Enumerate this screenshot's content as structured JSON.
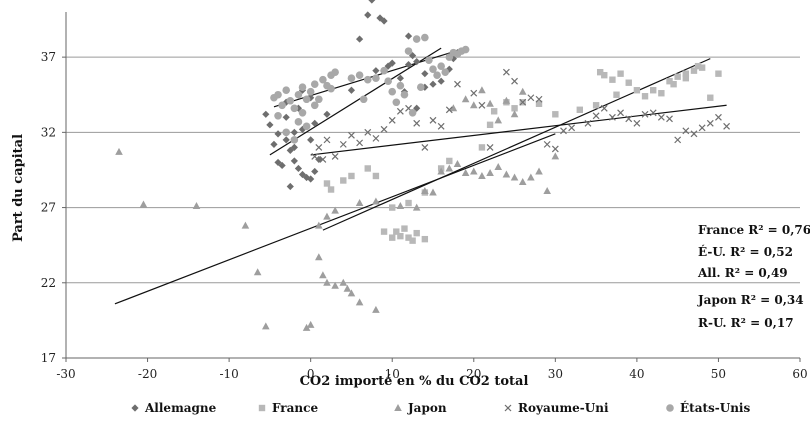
{
  "chart_data": {
    "type": "scatter",
    "xlabel": "CO2 importé en % du CO2 total",
    "ylabel": "Part du capital",
    "xlim": [
      -30,
      60
    ],
    "ylim": [
      17,
      40
    ],
    "x_ticks": [
      "-30",
      "-20",
      "-10",
      "0",
      "10",
      "20",
      "30",
      "40",
      "50",
      "60"
    ],
    "y_ticks": [
      "17",
      "22",
      "27",
      "32",
      "37"
    ],
    "grid": "horizontal",
    "legend_position": "bottom",
    "r2_labels": [
      "France R² = 0,76",
      "É-U. R² = 0,52",
      "All. R² = 0,49",
      "Japon R² = 0,34",
      "R-U. R² = 0,17"
    ],
    "series": [
      {
        "name": "Allemagne",
        "marker": "diamond",
        "color": "#6e6e6e",
        "points": [
          [
            -5.5,
            33.2
          ],
          [
            -5,
            32.5
          ],
          [
            -4,
            31.9
          ],
          [
            -3,
            31.5
          ],
          [
            -2.5,
            30.8
          ],
          [
            -2,
            30.1
          ],
          [
            -1.5,
            29.6
          ],
          [
            -1,
            29.2
          ],
          [
            -0.5,
            29.0
          ],
          [
            0,
            28.9
          ],
          [
            0.5,
            29.4
          ],
          [
            1,
            30.2
          ],
          [
            -4,
            30.0
          ],
          [
            -3.5,
            29.8
          ],
          [
            -2,
            31.0
          ],
          [
            -1,
            32.2
          ],
          [
            0,
            31.5
          ],
          [
            -3,
            33.0
          ],
          [
            -2,
            32.0
          ],
          [
            -4.5,
            31.2
          ],
          [
            -2.5,
            28.4
          ],
          [
            -1.5,
            33.6
          ],
          [
            0.5,
            32.6
          ],
          [
            2,
            33.2
          ],
          [
            -3,
            34.0
          ],
          [
            -1,
            34.8
          ],
          [
            0,
            34.3
          ],
          [
            5,
            34.8
          ],
          [
            6,
            38.2
          ],
          [
            7,
            39.8
          ],
          [
            7.5,
            40.8
          ],
          [
            8.5,
            39.6
          ],
          [
            9,
            39.4
          ],
          [
            9.5,
            36.4
          ],
          [
            10,
            36.6
          ],
          [
            11,
            35.6
          ],
          [
            12,
            36.5
          ],
          [
            12.5,
            37.1
          ],
          [
            13,
            36.7
          ],
          [
            14,
            35.9
          ],
          [
            15,
            35.2
          ],
          [
            16,
            35.4
          ],
          [
            17,
            36.2
          ],
          [
            17.5,
            36.9
          ],
          [
            18,
            37.3
          ],
          [
            12,
            38.4
          ],
          [
            11.5,
            34.7
          ],
          [
            13,
            33.6
          ],
          [
            14,
            35.0
          ],
          [
            8,
            36.1
          ]
        ]
      },
      {
        "name": "France",
        "marker": "square",
        "color": "#b8b8b8",
        "points": [
          [
            2,
            28.6
          ],
          [
            2.5,
            28.2
          ],
          [
            4,
            28.8
          ],
          [
            5,
            29.1
          ],
          [
            7,
            29.6
          ],
          [
            8,
            29.1
          ],
          [
            9,
            25.4
          ],
          [
            10,
            25.0
          ],
          [
            10.5,
            25.4
          ],
          [
            11,
            25.1
          ],
          [
            11.5,
            25.6
          ],
          [
            12,
            25.0
          ],
          [
            12.5,
            24.8
          ],
          [
            13,
            25.3
          ],
          [
            14,
            24.9
          ],
          [
            10,
            27.0
          ],
          [
            12,
            27.3
          ],
          [
            14,
            28.0
          ],
          [
            16,
            29.6
          ],
          [
            17,
            30.1
          ],
          [
            21,
            31.0
          ],
          [
            22,
            32.5
          ],
          [
            22.5,
            33.4
          ],
          [
            24,
            34.0
          ],
          [
            25,
            33.6
          ],
          [
            26,
            34.0
          ],
          [
            28,
            33.9
          ],
          [
            30,
            33.2
          ],
          [
            33,
            33.5
          ],
          [
            35,
            33.8
          ],
          [
            35.5,
            36.0
          ],
          [
            36,
            35.8
          ],
          [
            37,
            35.5
          ],
          [
            38,
            35.9
          ],
          [
            39,
            35.3
          ],
          [
            40,
            34.8
          ],
          [
            41,
            34.4
          ],
          [
            42,
            34.8
          ],
          [
            44,
            35.4
          ],
          [
            45,
            35.7
          ],
          [
            46,
            35.6
          ],
          [
            47,
            36.1
          ],
          [
            48,
            36.3
          ],
          [
            49,
            34.3
          ],
          [
            50,
            35.9
          ],
          [
            43,
            34.6
          ],
          [
            44.5,
            35.2
          ],
          [
            46,
            35.9
          ],
          [
            47.5,
            36.4
          ],
          [
            37.5,
            34.5
          ]
        ]
      },
      {
        "name": "Japon",
        "marker": "triangle",
        "color": "#9e9e9e",
        "points": [
          [
            -23.5,
            30.7
          ],
          [
            -20.5,
            27.2
          ],
          [
            -14,
            27.1
          ],
          [
            -8,
            25.8
          ],
          [
            -6.5,
            22.7
          ],
          [
            -5.5,
            19.1
          ],
          [
            -0.5,
            19.0
          ],
          [
            0,
            19.2
          ],
          [
            1,
            23.7
          ],
          [
            1.5,
            22.5
          ],
          [
            2,
            22.0
          ],
          [
            3,
            21.8
          ],
          [
            4,
            22.0
          ],
          [
            4.5,
            21.6
          ],
          [
            5,
            21.3
          ],
          [
            6,
            20.7
          ],
          [
            8,
            20.2
          ],
          [
            1,
            25.8
          ],
          [
            2,
            26.4
          ],
          [
            3,
            26.8
          ],
          [
            6,
            27.3
          ],
          [
            8,
            27.4
          ],
          [
            11,
            27.1
          ],
          [
            13,
            27.0
          ],
          [
            14,
            28.1
          ],
          [
            15,
            28.0
          ],
          [
            16,
            29.4
          ],
          [
            17,
            29.6
          ],
          [
            18,
            29.9
          ],
          [
            19,
            29.3
          ],
          [
            20,
            29.4
          ],
          [
            21,
            29.1
          ],
          [
            22,
            29.3
          ],
          [
            23,
            29.7
          ],
          [
            24,
            29.2
          ],
          [
            25,
            29.0
          ],
          [
            26,
            28.7
          ],
          [
            27,
            29.0
          ],
          [
            28,
            29.4
          ],
          [
            29,
            28.1
          ],
          [
            30,
            30.4
          ],
          [
            17.5,
            33.6
          ],
          [
            19,
            34.2
          ],
          [
            20,
            33.8
          ],
          [
            21,
            34.8
          ],
          [
            22,
            33.9
          ],
          [
            23,
            32.8
          ],
          [
            24,
            34.1
          ],
          [
            25,
            33.2
          ],
          [
            26,
            34.7
          ]
        ]
      },
      {
        "name": "Royaume-Uni",
        "marker": "x",
        "color": "#6e6e6e",
        "points": [
          [
            0.5,
            30.4
          ],
          [
            1,
            31.0
          ],
          [
            1.5,
            30.2
          ],
          [
            2,
            31.5
          ],
          [
            3,
            30.4
          ],
          [
            4,
            31.2
          ],
          [
            5,
            31.8
          ],
          [
            6,
            31.3
          ],
          [
            7,
            32.0
          ],
          [
            8,
            31.6
          ],
          [
            9,
            32.2
          ],
          [
            10,
            32.8
          ],
          [
            11,
            33.4
          ],
          [
            12,
            33.6
          ],
          [
            13,
            32.6
          ],
          [
            14,
            31.0
          ],
          [
            15,
            32.8
          ],
          [
            16,
            32.4
          ],
          [
            17,
            33.5
          ],
          [
            18,
            35.2
          ],
          [
            20,
            34.6
          ],
          [
            21,
            33.8
          ],
          [
            22,
            31.0
          ],
          [
            24,
            36.0
          ],
          [
            25,
            35.4
          ],
          [
            26,
            34.0
          ],
          [
            27,
            34.3
          ],
          [
            28,
            34.2
          ],
          [
            29,
            31.2
          ],
          [
            30,
            30.9
          ],
          [
            31,
            32.1
          ],
          [
            32,
            32.3
          ],
          [
            34,
            32.6
          ],
          [
            35,
            33.1
          ],
          [
            36,
            33.6
          ],
          [
            37,
            33.0
          ],
          [
            38,
            33.3
          ],
          [
            39,
            32.9
          ],
          [
            40,
            32.6
          ],
          [
            41,
            33.2
          ],
          [
            42,
            33.3
          ],
          [
            43,
            33.0
          ],
          [
            44,
            32.9
          ],
          [
            45,
            31.5
          ],
          [
            46,
            32.1
          ],
          [
            47,
            31.9
          ],
          [
            48,
            32.3
          ],
          [
            49,
            32.6
          ],
          [
            50,
            33.0
          ],
          [
            51,
            32.4
          ]
        ]
      },
      {
        "name": "États-Unis",
        "marker": "circle",
        "color": "#a8a8a8",
        "points": [
          [
            -4.5,
            34.3
          ],
          [
            -4,
            34.5
          ],
          [
            -3.5,
            33.8
          ],
          [
            -3,
            34.8
          ],
          [
            -2.5,
            34.1
          ],
          [
            -2,
            33.6
          ],
          [
            -1.5,
            32.7
          ],
          [
            -1,
            33.3
          ],
          [
            -0.5,
            32.4
          ],
          [
            0,
            34.7
          ],
          [
            0.5,
            35.2
          ],
          [
            1,
            34.2
          ],
          [
            1.5,
            35.5
          ],
          [
            2,
            35.1
          ],
          [
            2.5,
            35.8
          ],
          [
            3,
            36.0
          ],
          [
            -3,
            32.0
          ],
          [
            -2,
            31.5
          ],
          [
            -4,
            33.1
          ],
          [
            -1,
            35.0
          ],
          [
            5,
            35.6
          ],
          [
            6,
            35.8
          ],
          [
            7,
            35.5
          ],
          [
            8,
            35.6
          ],
          [
            9,
            36.1
          ],
          [
            9.5,
            35.4
          ],
          [
            10,
            34.7
          ],
          [
            11,
            35.1
          ],
          [
            12,
            37.4
          ],
          [
            13,
            38.2
          ],
          [
            14,
            38.3
          ],
          [
            14.5,
            36.8
          ],
          [
            15,
            36.2
          ],
          [
            15.5,
            35.8
          ],
          [
            16,
            36.4
          ],
          [
            17,
            37.0
          ],
          [
            18,
            37.2
          ],
          [
            18.5,
            37.4
          ],
          [
            19,
            37.5
          ],
          [
            10.5,
            34.0
          ],
          [
            11.5,
            34.5
          ],
          [
            12.5,
            33.3
          ],
          [
            13.5,
            35.0
          ],
          [
            0.5,
            33.8
          ],
          [
            -1.5,
            34.5
          ],
          [
            2.5,
            34.9
          ],
          [
            6.5,
            34.2
          ],
          [
            16.5,
            36.0
          ],
          [
            17.5,
            37.3
          ],
          [
            -0.5,
            34.2
          ]
        ]
      }
    ],
    "trendlines": [
      {
        "series": "Allemagne",
        "x1": -5,
        "y1": 30.5,
        "x2": 16,
        "y2": 37.6
      },
      {
        "series": "France",
        "x1": 1.5,
        "y1": 25.5,
        "x2": 49,
        "y2": 36.9
      },
      {
        "series": "Japon",
        "x1": -24,
        "y1": 20.6,
        "x2": 30,
        "y2": 31.9
      },
      {
        "series": "Royaume-Uni",
        "x1": 0,
        "y1": 30.5,
        "x2": 51,
        "y2": 33.8
      },
      {
        "series": "États-Unis",
        "x1": -4.5,
        "y1": 33.7,
        "x2": 19,
        "y2": 37.6
      }
    ]
  }
}
